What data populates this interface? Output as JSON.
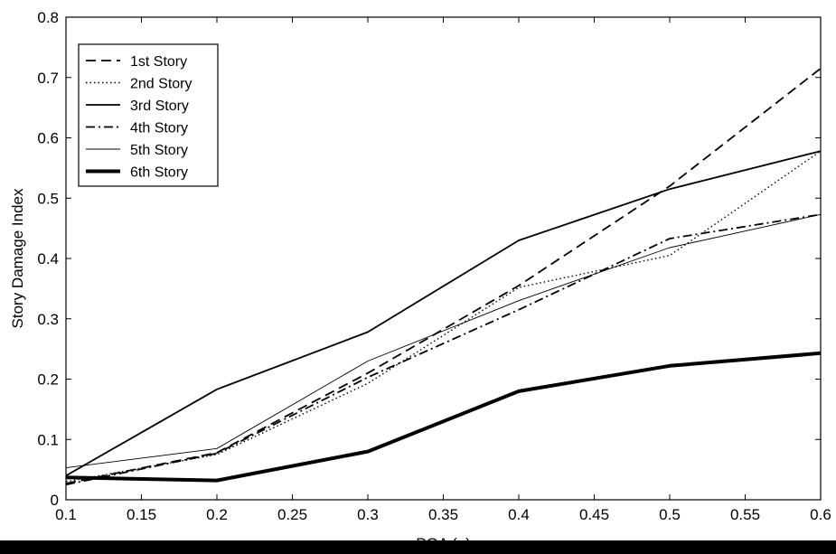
{
  "chart_data": {
    "type": "line",
    "title": "",
    "xlabel": "PGA (g)",
    "ylabel": "Story Damage Index",
    "xlim": [
      0.1,
      0.6
    ],
    "ylim": [
      0,
      0.8
    ],
    "xticks": [
      "0.1",
      "0.15",
      "0.2",
      "0.25",
      "0.3",
      "0.35",
      "0.4",
      "0.45",
      "0.5",
      "0.55",
      "0.6"
    ],
    "yticks": [
      "0",
      "0.1",
      "0.2",
      "0.3",
      "0.4",
      "0.5",
      "0.6",
      "0.7",
      "0.8"
    ],
    "grid": false,
    "legend_position": "top-left",
    "x": [
      0.1,
      0.2,
      0.3,
      0.4,
      0.5,
      0.6
    ],
    "series": [
      {
        "name": "1st Story",
        "style": "dashed",
        "color": "#000000",
        "values": [
          0.027,
          0.078,
          0.21,
          0.355,
          0.52,
          0.715
        ]
      },
      {
        "name": "2nd Story",
        "style": "dotted",
        "color": "#000000",
        "values": [
          0.03,
          0.075,
          0.193,
          0.352,
          0.405,
          0.578
        ]
      },
      {
        "name": "3rd Story",
        "style": "solid",
        "color": "#000000",
        "values": [
          0.04,
          0.183,
          0.278,
          0.43,
          0.515,
          0.578
        ]
      },
      {
        "name": "4th Story",
        "style": "dashdot",
        "color": "#000000",
        "values": [
          0.025,
          0.077,
          0.203,
          0.315,
          0.433,
          0.473
        ]
      },
      {
        "name": "5th Story",
        "style": "thin",
        "color": "#000000",
        "values": [
          0.053,
          0.085,
          0.23,
          0.33,
          0.418,
          0.473
        ]
      },
      {
        "name": "6th Story",
        "style": "thick",
        "color": "#000000",
        "values": [
          0.037,
          0.032,
          0.08,
          0.18,
          0.222,
          0.243
        ]
      }
    ]
  }
}
